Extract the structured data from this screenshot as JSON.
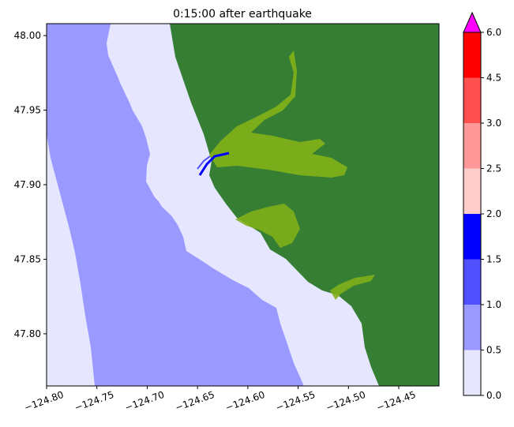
{
  "chart_data": {
    "type": "heatmap",
    "title": "0:15:00 after earthquake",
    "xlabel": "",
    "ylabel": "",
    "xlim": [
      -124.8,
      -124.41
    ],
    "ylim": [
      47.765,
      48.008
    ],
    "x_ticks": [
      -124.8,
      -124.75,
      -124.7,
      -124.65,
      -124.6,
      -124.55,
      -124.5,
      -124.45
    ],
    "x_tick_labels": [
      "−124.80",
      "−124.75",
      "−124.70",
      "−124.65",
      "−124.60",
      "−124.55",
      "−124.50",
      "−124.45"
    ],
    "y_ticks": [
      47.8,
      47.85,
      47.9,
      47.95,
      48.0
    ],
    "y_tick_labels": [
      "47.80",
      "47.85",
      "47.90",
      "47.95",
      "48.00"
    ],
    "grid": false,
    "land_color": "#357e33",
    "inundation_color": "#7fb01a",
    "colorbar": {
      "levels": [
        0.0,
        0.5,
        1.0,
        1.5,
        2.0,
        2.5,
        3.0,
        4.5,
        6.0
      ],
      "labels": [
        "0.0",
        "0.5",
        "1.0",
        "1.5",
        "2.0",
        "2.5",
        "3.0",
        "4.5",
        "6.0"
      ],
      "colors": [
        "#e6e6ff",
        "#9999ff",
        "#5050ff",
        "#0000ff",
        "#ffcccc",
        "#ff9999",
        "#ff5050",
        "#ff0000"
      ],
      "extend_color": "#ff00ff",
      "extend": "max"
    },
    "regions": {
      "deep_water_value": 0.6,
      "shallow_water_value": 0.2,
      "channel_value": 1.8
    }
  }
}
